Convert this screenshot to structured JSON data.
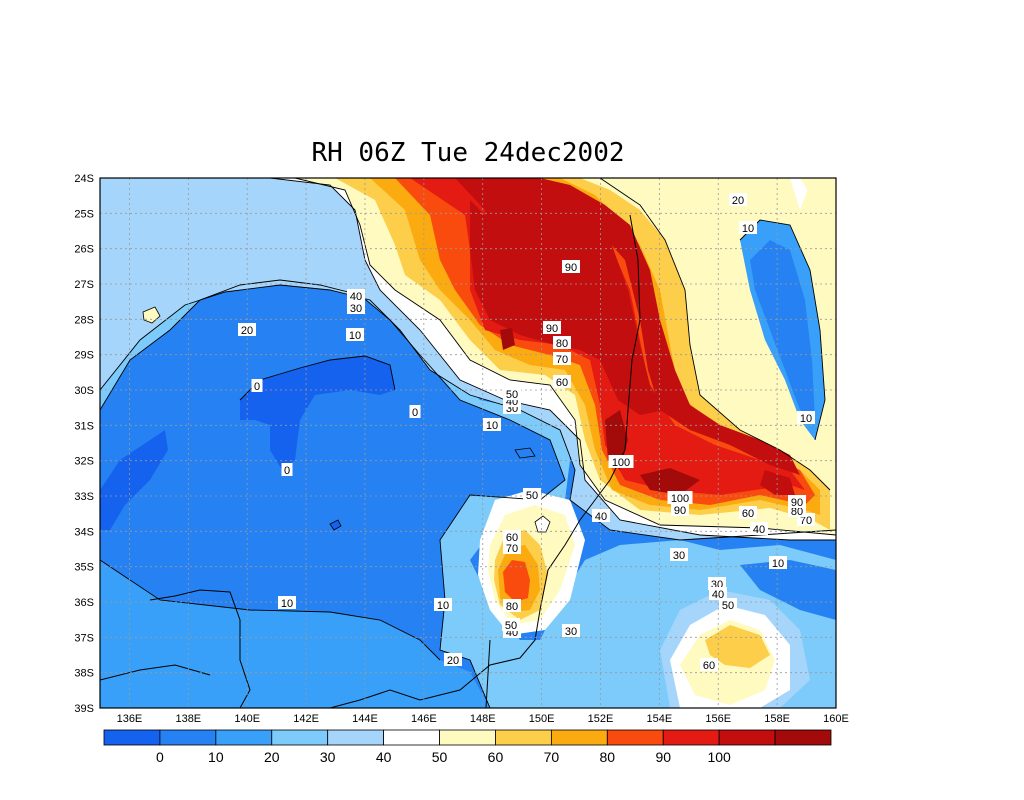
{
  "title": "RH 06Z Tue 24dec2002",
  "map": {
    "lon_range": [
      135,
      160
    ],
    "lat_range": [
      -24,
      -39
    ],
    "lat_labels": [
      "24S",
      "25S",
      "26S",
      "27S",
      "28S",
      "29S",
      "30S",
      "31S",
      "32S",
      "33S",
      "34S",
      "35S",
      "36S",
      "37S",
      "38S",
      "39S"
    ],
    "lon_labels": [
      "136E",
      "138E",
      "140E",
      "142E",
      "144E",
      "146E",
      "148E",
      "150E",
      "152E",
      "154E",
      "156E",
      "158E",
      "160E"
    ]
  },
  "contour_labels": [
    "0",
    "0",
    "0",
    "10",
    "10",
    "10",
    "10",
    "10",
    "10",
    "10",
    "20",
    "20",
    "20",
    "30",
    "30",
    "30",
    "30",
    "30",
    "40",
    "40",
    "40",
    "40",
    "40",
    "40",
    "50",
    "50",
    "50",
    "50",
    "60",
    "60",
    "60",
    "60",
    "70",
    "70",
    "70",
    "80",
    "80",
    "80",
    "80",
    "90",
    "90",
    "90",
    "90",
    "100",
    "100"
  ],
  "colorbar": {
    "labels": [
      "0",
      "10",
      "20",
      "30",
      "40",
      "50",
      "60",
      "70",
      "80",
      "90",
      "100"
    ],
    "colors": [
      "#1562ef",
      "#2682f2",
      "#38a0f8",
      "#7ccbfa",
      "#a6d5fb",
      "#ffffff",
      "#fffac0",
      "#fdce4a",
      "#fbaa10",
      "#fa4b0f",
      "#e41b13",
      "#c20e0e",
      "#a30a0a"
    ]
  }
}
